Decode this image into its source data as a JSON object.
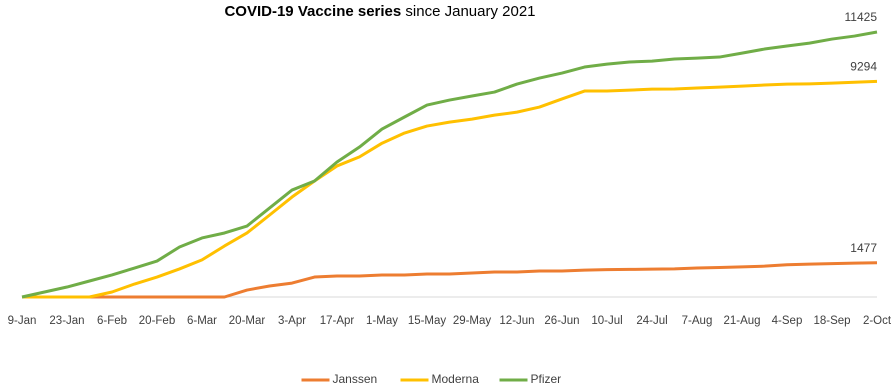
{
  "chart_data": {
    "type": "line",
    "title": "COVID-19 Vaccine series",
    "subtitle": "since January 2021",
    "categories": [
      "9-Jan",
      null,
      "23-Jan",
      null,
      "6-Feb",
      null,
      "20-Feb",
      null,
      "6-Mar",
      null,
      "20-Mar",
      null,
      "3-Apr",
      null,
      "17-Apr",
      null,
      "1-May",
      null,
      "15-May",
      null,
      "29-May",
      null,
      "12-Jun",
      null,
      "26-Jun",
      null,
      "10-Jul",
      null,
      "24-Jul",
      null,
      "7-Aug",
      null,
      "21-Aug",
      null,
      "4-Sep",
      null,
      "18-Sep",
      null,
      "2-Oct"
    ],
    "series": [
      {
        "name": "Janssen",
        "color": "#ed7d31",
        "values": [
          0,
          0,
          0,
          0,
          0,
          0,
          0,
          0,
          0,
          0,
          300,
          475,
          600,
          860,
          905,
          905,
          950,
          950,
          990,
          990,
          1035,
          1080,
          1080,
          1120,
          1120,
          1160,
          1180,
          1190,
          1200,
          1210,
          1250,
          1270,
          1300,
          1330,
          1390,
          1420,
          1440,
          1460,
          1477
        ]
      },
      {
        "name": "Moderna",
        "color": "#ffc000",
        "values": [
          0,
          0,
          0,
          0,
          215,
          560,
          860,
          1210,
          1600,
          2200,
          2760,
          3530,
          4310,
          5000,
          5650,
          6040,
          6630,
          7070,
          7370,
          7540,
          7670,
          7840,
          7970,
          8190,
          8540,
          8880,
          8880,
          8920,
          8960,
          8970,
          9010,
          9050,
          9090,
          9140,
          9180,
          9190,
          9220,
          9260,
          9294
        ]
      },
      {
        "name": "Pfizer",
        "color": "#70ad47",
        "values": [
          0,
          215,
          430,
          690,
          950,
          1250,
          1550,
          2155,
          2545,
          2760,
          3060,
          3835,
          4610,
          5000,
          5820,
          6465,
          7240,
          7760,
          8275,
          8490,
          8665,
          8835,
          9180,
          9440,
          9655,
          9915,
          10040,
          10130,
          10170,
          10260,
          10300,
          10345,
          10515,
          10690,
          10820,
          10945,
          11120,
          11250,
          11425
        ]
      }
    ],
    "ylim": [
      0,
      12000
    ],
    "legend": "bottom"
  }
}
